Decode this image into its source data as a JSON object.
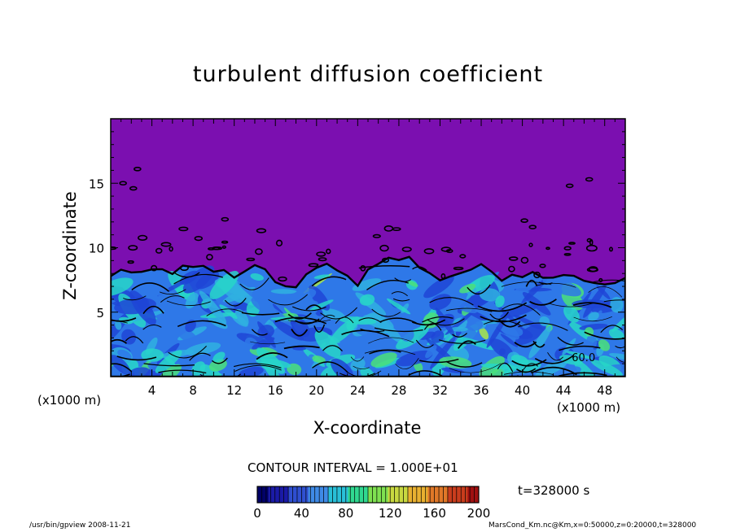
{
  "chart_data": {
    "type": "heatmap",
    "title": "turbulent diffusion coefficient",
    "xlabel": "X-coordinate",
    "ylabel": "Z-coordinate",
    "x_unit": "(x1000 m)",
    "xlim": [
      0,
      50
    ],
    "ylim": [
      0,
      20
    ],
    "x_ticks": [
      4,
      8,
      12,
      16,
      20,
      24,
      28,
      32,
      36,
      40,
      44,
      48
    ],
    "y_ticks": [
      5,
      10,
      15
    ],
    "contour_interval_label": "CONTOUR INTERVAL = 1.000E+01",
    "time_label": "t=328000 s",
    "colorbar": {
      "min": 0,
      "max": 200,
      "ticks": [
        0,
        40,
        80,
        120,
        160,
        200
      ],
      "colors": [
        "#000066",
        "#1a1aa6",
        "#2f4fd0",
        "#3f8ae6",
        "#28bfd8",
        "#30d890",
        "#7ee050",
        "#c8d840",
        "#e8b030",
        "#e07828",
        "#c83c1c",
        "#a01010"
      ]
    },
    "background_color": "#7b0fb0",
    "field_colors": [
      "#1f45d6",
      "#2e78e8",
      "#2fb0e0",
      "#27d6c8",
      "#4ae07a",
      "#a9e84a"
    ],
    "annotation": "60.0",
    "boundary_layer_top_km": [
      7.6,
      8.0,
      8.4,
      7.9,
      8.6,
      8.2,
      7.8,
      8.6,
      7.4,
      7.0,
      8.6,
      8.1,
      7.2,
      8.8,
      9.2,
      8.4,
      7.6,
      7.9,
      8.7,
      7.6,
      7.8,
      7.5,
      7.9,
      7.4,
      7.3,
      7.6
    ],
    "boundary_layer_x_km": [
      0,
      2,
      4,
      6,
      8,
      10,
      12,
      14,
      16,
      18,
      20,
      22,
      24,
      26,
      28,
      30,
      32,
      34,
      36,
      38,
      40,
      42,
      44,
      46,
      48,
      50
    ]
  },
  "footer": {
    "left": "/usr/bin/gpview   2008-11-21",
    "right": "MarsCond_Km.nc@Km,x=0:50000,z=0:20000,t=328000"
  }
}
